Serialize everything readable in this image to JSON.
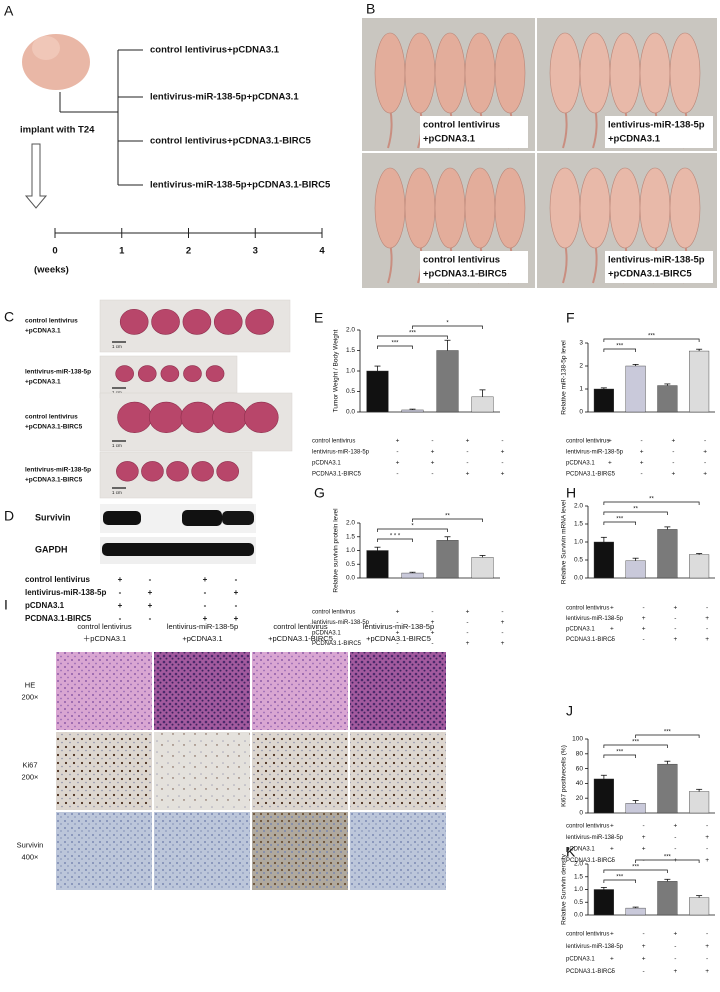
{
  "panel_a": {
    "label": "A",
    "groups": [
      "control lentivirus+pCDNA3.1",
      "lentivirus-miR-138-5p+pCDNA3.1",
      "control lentivirus+pCDNA3.1-BIRC5",
      "lentivirus-miR-138-5p+pCDNA3.1-BIRC5"
    ],
    "implant": "implant  with T24",
    "timeline": [
      0,
      1,
      2,
      3,
      4
    ],
    "unit": "(weeks)"
  },
  "panel_b": {
    "label": "B",
    "captions": [
      [
        "control lentivirus",
        "+pCDNA3.1"
      ],
      [
        "lentivirus-miR-138-5p",
        "+pCDNA3.1"
      ],
      [
        "control lentivirus",
        "+pCDNA3.1-BIRC5"
      ],
      [
        "lentivirus-miR-138-5p",
        "+pCDNA3.1-BIRC5"
      ]
    ]
  },
  "panel_c": {
    "label": "C",
    "rows": [
      [
        "control lentivirus",
        "+pCDNA3.1"
      ],
      [
        "lentivirus-miR-138-5p",
        "+pCDNA3.1"
      ],
      [
        "control lentivirus",
        "+pCDNA3.1-BIRC5"
      ],
      [
        "lentivirus-miR-138-5p",
        "+pCDNA3.1-BIRC5"
      ]
    ],
    "scale": "1 cm"
  },
  "panel_d": {
    "label": "D",
    "bands": [
      "Survivin",
      "GAPDH"
    ],
    "rows": [
      {
        "label": "control lentivirus",
        "signs": [
          "+",
          "-",
          "+",
          "-"
        ]
      },
      {
        "label": "lentivirus-miR-138-5p",
        "signs": [
          "-",
          "+",
          "-",
          "+"
        ]
      },
      {
        "label": "pCDNA3.1",
        "signs": [
          "+",
          "+",
          "-",
          "-"
        ]
      },
      {
        "label": "PCDNA3.1-BIRC5",
        "signs": [
          "-",
          "-",
          "+",
          "+"
        ]
      }
    ]
  },
  "panel_i": {
    "label": "I",
    "columns": [
      [
        "control lentivirus",
        "＋pCDNA3.1"
      ],
      [
        "lentivirus-miR-138-5p",
        "+pCDNA3.1"
      ],
      [
        "control lentivirus",
        "+pCDNA3.1-BIRC5"
      ],
      [
        "lentivirus-miR-138-5p",
        "+pCDNA3.1-BIRC5"
      ]
    ],
    "rows": [
      [
        "HE",
        "200×"
      ],
      [
        "Ki67",
        "200×"
      ],
      [
        "Survivin",
        "400×"
      ]
    ]
  },
  "chart_data": [
    {
      "type": "bar",
      "panel": "E",
      "ylabel": "Tumor Weight / Body Weight",
      "values": [
        1.0,
        0.05,
        1.5,
        0.37
      ],
      "errors": [
        0.12,
        0.02,
        0.25,
        0.17
      ],
      "colors": [
        "#111111",
        "#c9c9da",
        "#7a7a7a",
        "#dcdcdc"
      ],
      "ylim": [
        0,
        2
      ],
      "yticks": [
        {
          "value": 0,
          "label": "0.0"
        },
        0.5,
        {
          "value": 1,
          "label": "1.0"
        },
        1.5,
        {
          "value": 2,
          "label": "2.0"
        }
      ],
      "annotations": [
        {
          "text": "***",
          "from": 0,
          "to": 1
        },
        {
          "text": "***",
          "from": 0,
          "to": 2
        },
        {
          "text": "*",
          "from": 1,
          "to": 3
        }
      ],
      "rows": [
        {
          "label": "control lentivirus",
          "signs": [
            "+",
            "-",
            "+",
            "-"
          ]
        },
        {
          "label": "lentivirus-miR-138-5p",
          "signs": [
            "-",
            "+",
            "-",
            "+"
          ]
        },
        {
          "label": "pCDNA3.1",
          "signs": [
            "+",
            "+",
            "-",
            "-"
          ]
        },
        {
          "label": "PCDNA3.1-BIRC5",
          "signs": [
            "-",
            "-",
            "+",
            "+"
          ]
        }
      ]
    },
    {
      "type": "bar",
      "panel": "F",
      "ylabel": "Relative miR-138-5p level",
      "values": [
        1.0,
        2.0,
        1.15,
        2.65
      ],
      "errors": [
        0.05,
        0.07,
        0.07,
        0.08
      ],
      "colors": [
        "#111111",
        "#c9c9da",
        "#7a7a7a",
        "#dcdcdc"
      ],
      "ylim": [
        0,
        3
      ],
      "yticks": [
        0,
        1,
        2,
        3
      ],
      "annotations": [
        {
          "text": "***",
          "from": 0,
          "to": 1
        },
        {
          "text": "***",
          "from": 0,
          "to": 3
        }
      ],
      "rows": [
        {
          "label": "control lentivirus",
          "signs": [
            "+",
            "-",
            "+",
            "-"
          ]
        },
        {
          "label": "lentivirus-miR-138-5p",
          "signs": [
            "-",
            "+",
            "-",
            "+"
          ]
        },
        {
          "label": "pCDNA3.1",
          "signs": [
            "+",
            "+",
            "-",
            "-"
          ]
        },
        {
          "label": "PCDNA3.1-BIRC5",
          "signs": [
            "-",
            "-",
            "+",
            "+"
          ]
        }
      ]
    },
    {
      "type": "bar",
      "panel": "G",
      "ylabel": "Relative survivin protein level",
      "values": [
        1.0,
        0.18,
        1.37,
        0.75
      ],
      "errors": [
        0.12,
        0.03,
        0.13,
        0.07
      ],
      "colors": [
        "#111111",
        "#c9c9da",
        "#7a7a7a",
        "#dcdcdc"
      ],
      "ylim": [
        0,
        2
      ],
      "yticks": [
        {
          "value": 0,
          "label": "0.0"
        },
        0.5,
        {
          "value": 1,
          "label": "1.0"
        },
        1.5,
        {
          "value": 2,
          "label": "2.0"
        }
      ],
      "annotations": [
        {
          "text": "* * *",
          "from": 0,
          "to": 1
        },
        {
          "text": "*",
          "from": 0,
          "to": 2
        },
        {
          "text": "**",
          "from": 1,
          "to": 3
        }
      ],
      "rows": [
        {
          "label": "control lentivirus",
          "signs": [
            "+",
            "-",
            "+",
            "-"
          ]
        },
        {
          "label": "lentivirus-miR-138-5p",
          "signs": [
            "-",
            "+",
            "-",
            "+"
          ]
        },
        {
          "label": "pCDNA3.1",
          "signs": [
            "+",
            "+",
            "-",
            "-"
          ]
        },
        {
          "label": "PCDNA3.1-BIRC5",
          "signs": [
            "-",
            "-",
            "+",
            "+"
          ]
        }
      ]
    },
    {
      "type": "bar",
      "panel": "H",
      "ylabel": "Relative Survivin mRNA level",
      "values": [
        1.0,
        0.48,
        1.35,
        0.65
      ],
      "errors": [
        0.13,
        0.07,
        0.07,
        0.03
      ],
      "colors": [
        "#111111",
        "#c9c9da",
        "#7a7a7a",
        "#dcdcdc"
      ],
      "ylim": [
        0,
        2
      ],
      "yticks": [
        {
          "value": 0,
          "label": "0.0"
        },
        0.5,
        {
          "value": 1,
          "label": "1.0"
        },
        1.5,
        {
          "value": 2,
          "label": "2.0"
        }
      ],
      "annotations": [
        {
          "text": "***",
          "from": 0,
          "to": 1
        },
        {
          "text": "**",
          "from": 0,
          "to": 2
        },
        {
          "text": "**",
          "from": 0,
          "to": 3
        }
      ],
      "rows": [
        {
          "label": "control lentivirus",
          "signs": [
            "+",
            "-",
            "+",
            "-"
          ]
        },
        {
          "label": "lentivirus-miR-138-5p",
          "signs": [
            "-",
            "+",
            "-",
            "+"
          ]
        },
        {
          "label": "pCDNA3.1",
          "signs": [
            "+",
            "+",
            "-",
            "-"
          ]
        },
        {
          "label": "PCDNA3.1-BIRC5",
          "signs": [
            "-",
            "-",
            "+",
            "+"
          ]
        }
      ]
    },
    {
      "type": "bar",
      "panel": "J",
      "ylabel": "Ki67 positivecells  (%)",
      "values": [
        46,
        13,
        66,
        29
      ],
      "errors": [
        5,
        4,
        4,
        3
      ],
      "colors": [
        "#111111",
        "#c9c9da",
        "#7a7a7a",
        "#dcdcdc"
      ],
      "ylim": [
        0,
        100
      ],
      "yticks": [
        0,
        20,
        40,
        60,
        80,
        100
      ],
      "annotations": [
        {
          "text": "***",
          "from": 0,
          "to": 1
        },
        {
          "text": "***",
          "from": 0,
          "to": 2
        },
        {
          "text": "***",
          "from": 1,
          "to": 3
        }
      ],
      "rows": [
        {
          "label": "control lentivirus",
          "signs": [
            "+",
            "-",
            "+",
            "-"
          ]
        },
        {
          "label": "lentivirus-miR-138-5p",
          "signs": [
            "-",
            "+",
            "-",
            "+"
          ]
        },
        {
          "label": "pCDNA3.1",
          "signs": [
            "+",
            "+",
            "-",
            "-"
          ]
        },
        {
          "label": "PCDNA3.1-BIRC5",
          "signs": [
            "-",
            "-",
            "+",
            "+"
          ]
        }
      ]
    },
    {
      "type": "bar",
      "panel": "K",
      "ylabel": "Relative Survivin density",
      "values": [
        1.0,
        0.27,
        1.32,
        0.68
      ],
      "errors": [
        0.08,
        0.04,
        0.08,
        0.08
      ],
      "colors": [
        "#111111",
        "#c9c9da",
        "#7a7a7a",
        "#dcdcdc"
      ],
      "ylim": [
        0,
        2
      ],
      "yticks": [
        {
          "value": 0,
          "label": "0.0"
        },
        0.5,
        {
          "value": 1,
          "label": "1.0"
        },
        1.5,
        {
          "value": 2,
          "label": "2.0"
        }
      ],
      "annotations": [
        {
          "text": "***",
          "from": 0,
          "to": 1
        },
        {
          "text": "***",
          "from": 0,
          "to": 2
        },
        {
          "text": "***",
          "from": 1,
          "to": 3
        }
      ],
      "rows": [
        {
          "label": "control lentivirus",
          "signs": [
            "+",
            "-",
            "+",
            "-"
          ]
        },
        {
          "label": "lentivirus-miR-138-5p",
          "signs": [
            "-",
            "+",
            "-",
            "+"
          ]
        },
        {
          "label": "pCDNA3.1",
          "signs": [
            "+",
            "+",
            "-",
            "-"
          ]
        },
        {
          "label": "PCDNA3.1-BIRC5",
          "signs": [
            "-",
            "-",
            "+",
            "+"
          ]
        }
      ]
    }
  ]
}
